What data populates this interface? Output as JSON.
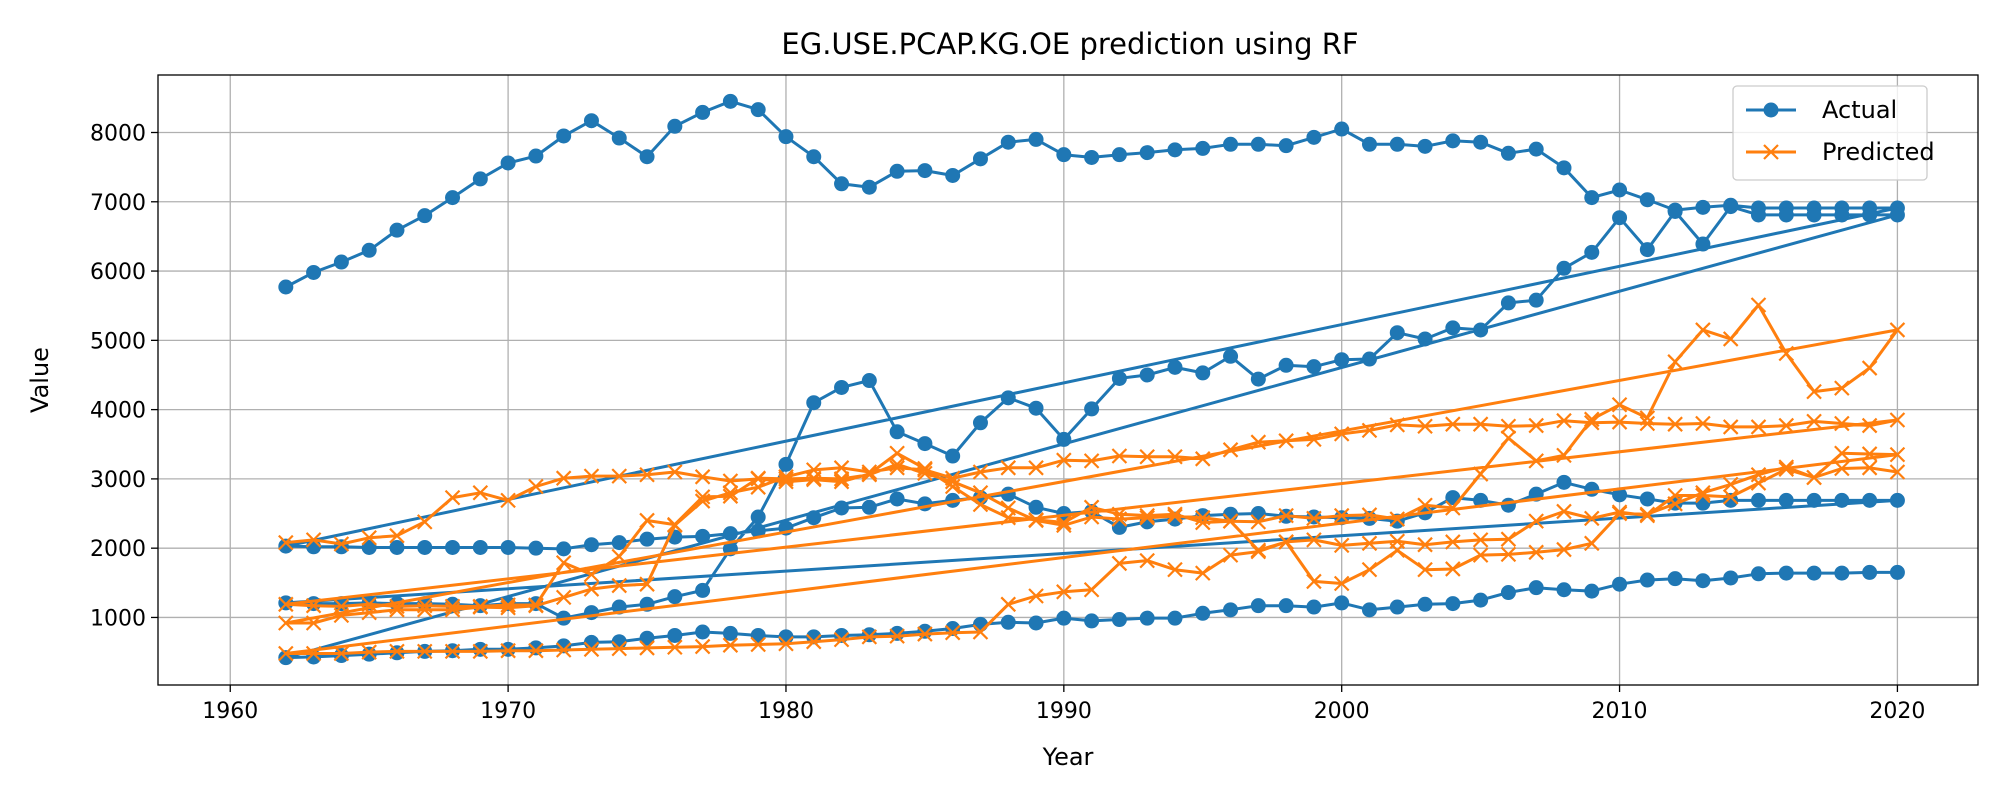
{
  "chart_data": {
    "type": "line",
    "title": "EG.USE.PCAP.KG.OE prediction using RF",
    "xlabel": "Year",
    "ylabel": "Value",
    "xlim": [
      1957.4,
      2022.9
    ],
    "ylim": [
      25,
      8830
    ],
    "xticks": [
      1960,
      1970,
      1980,
      1990,
      2000,
      2010,
      2020
    ],
    "yticks": [
      1000,
      2000,
      3000,
      4000,
      5000,
      6000,
      7000,
      8000
    ],
    "grid": true,
    "legend_position": "top-right",
    "colors": {
      "actual": "#1f77b4",
      "predicted": "#ff7f0e",
      "grid": "#b0b0b0"
    },
    "series": [
      {
        "name": "Actual",
        "marker": "circle",
        "x": [
          1962,
          1963,
          1964,
          1965,
          1966,
          1967,
          1968,
          1969,
          1970,
          1971,
          1972,
          1973,
          1974,
          1975,
          1976,
          1977,
          1978,
          1979,
          1980,
          1981,
          1982,
          1983,
          1984,
          1985,
          1986,
          1987,
          1988,
          1989,
          1990,
          1991,
          1992,
          1993,
          1994,
          1995,
          1996,
          1997,
          1998,
          1999,
          2000,
          2001,
          2002,
          2003,
          2004,
          2005,
          2006,
          2007,
          2008,
          2009,
          2010,
          2011,
          2012,
          2013,
          2014,
          2015,
          2016,
          2017,
          2018,
          2019,
          2020,
          1962,
          1963,
          1964,
          1965,
          1966,
          1967,
          1968,
          1969,
          1970,
          1971,
          1972,
          1973,
          1974,
          1975,
          1976,
          1977,
          1978,
          1979,
          1980,
          1981,
          1982,
          1983,
          1984,
          1985,
          1986,
          1987,
          1988,
          1989,
          1990,
          1991,
          1992,
          1993,
          1994,
          1995,
          1996,
          1997,
          1998,
          1999,
          2000,
          2001,
          2002,
          2003,
          2004,
          2005,
          2006,
          2007,
          2008,
          2009,
          2010,
          2011,
          2012,
          2013,
          2014,
          2015,
          2016,
          2017,
          2018,
          2019,
          2020,
          1962,
          1963,
          1964,
          1965,
          1966,
          1967,
          1968,
          1969,
          1970,
          1971,
          1972,
          1973,
          1974,
          1975,
          1976,
          1977,
          1978,
          1979,
          1980,
          1981,
          1982,
          1983,
          1984,
          1985,
          1986,
          1987,
          1988,
          1989,
          1990,
          1991,
          1992,
          1993,
          1994,
          1995,
          1996,
          1997,
          1998,
          1999,
          2000,
          2001,
          2002,
          2003,
          2004,
          2005,
          2006,
          2007,
          2008,
          2009,
          2010,
          2011,
          2012,
          2013,
          2014,
          2015,
          2016,
          2017,
          2018,
          2019,
          2020,
          1962,
          1963,
          1964,
          1965,
          1966,
          1967,
          1968,
          1969,
          1970,
          1971,
          1972,
          1973,
          1974,
          1975,
          1976,
          1977,
          1978,
          1979,
          1980,
          1981,
          1982,
          1983,
          1984,
          1985,
          1986,
          1987,
          1988,
          1989,
          1990,
          1991,
          1992,
          1993,
          1994,
          1995,
          1996,
          1997,
          1998,
          1999,
          2000,
          2001,
          2002,
          2003,
          2004,
          2005,
          2006,
          2007,
          2008,
          2009,
          2010,
          2011,
          2012,
          2013,
          2014,
          2015,
          2016,
          2017,
          2018,
          2019,
          2020
        ],
        "y": [
          5770,
          5980,
          6130,
          6300,
          6590,
          6800,
          7060,
          7330,
          7560,
          7660,
          7950,
          8170,
          7920,
          7650,
          8090,
          8290,
          8450,
          8330,
          7940,
          7650,
          7260,
          7210,
          7440,
          7450,
          7380,
          7620,
          7860,
          7900,
          7680,
          7640,
          7680,
          7710,
          7750,
          7770,
          7830,
          7830,
          7810,
          7930,
          8050,
          7830,
          7830,
          7800,
          7880,
          7860,
          7700,
          7760,
          7490,
          7060,
          7170,
          7030,
          6880,
          6920,
          6950,
          6910,
          6910,
          6910,
          6910,
          6910,
          6910,
          2030,
          2020,
          2020,
          2010,
          2010,
          2010,
          2010,
          2010,
          2010,
          2000,
          1990,
          2050,
          2080,
          2130,
          2160,
          2170,
          2210,
          2250,
          2290,
          2440,
          2580,
          2590,
          2710,
          2640,
          2690,
          2730,
          2780,
          2590,
          2500,
          2530,
          2300,
          2380,
          2420,
          2470,
          2490,
          2500,
          2460,
          2450,
          2440,
          2430,
          2390,
          2510,
          2730,
          2690,
          2620,
          2780,
          2950,
          2850,
          2770,
          2710,
          2650,
          2650,
          2690,
          2690,
          2690,
          2690,
          2690,
          2690,
          2690,
          1210,
          1200,
          1200,
          1210,
          1200,
          1200,
          1190,
          1170,
          1200,
          1200,
          990,
          1070,
          1150,
          1190,
          1300,
          1390,
          1990,
          2450,
          3210,
          4100,
          4320,
          4420,
          3680,
          3510,
          3330,
          3810,
          4170,
          4020,
          3570,
          4010,
          4450,
          4500,
          4610,
          4530,
          4770,
          4440,
          4640,
          4620,
          4720,
          4730,
          5110,
          5020,
          5180,
          5150,
          5540,
          5580,
          6040,
          6270,
          6770,
          6310,
          6860,
          6390,
          6930,
          6810,
          6810,
          6810,
          6810,
          6810,
          6810,
          420,
          430,
          450,
          470,
          490,
          510,
          520,
          540,
          540,
          560,
          590,
          640,
          650,
          700,
          740,
          790,
          770,
          740,
          720,
          720,
          740,
          750,
          770,
          800,
          840,
          900,
          930,
          920,
          990,
          950,
          970,
          990,
          990,
          1060,
          1110,
          1170,
          1170,
          1150,
          1210,
          1110,
          1150,
          1190,
          1200,
          1250,
          1360,
          1430,
          1400,
          1380,
          1480,
          1540,
          1560,
          1530,
          1570,
          1630,
          1640,
          1640,
          1640,
          1650,
          1650
        ]
      },
      {
        "name": "Predicted",
        "marker": "x",
        "x": [
          1962,
          1963,
          1964,
          1965,
          1966,
          1967,
          1968,
          1969,
          1970,
          1971,
          1972,
          1973,
          1974,
          1975,
          1976,
          1977,
          1978,
          1979,
          1980,
          1981,
          1982,
          1983,
          1984,
          1985,
          1986,
          1987,
          1988,
          1989,
          1990,
          1991,
          1992,
          1993,
          1994,
          1995,
          1996,
          1997,
          1998,
          1999,
          2000,
          2001,
          2002,
          2003,
          2004,
          2005,
          2006,
          2007,
          2008,
          2009,
          2010,
          2011,
          2012,
          2013,
          2014,
          2015,
          2016,
          2017,
          2018,
          2019,
          2020,
          1962,
          1963,
          1964,
          1965,
          1966,
          1967,
          1968,
          1969,
          1970,
          1971,
          1972,
          1973,
          1974,
          1975,
          1976,
          1977,
          1978,
          1979,
          1980,
          1981,
          1982,
          1983,
          1984,
          1985,
          1986,
          1987,
          1988,
          1989,
          1990,
          1991,
          1992,
          1993,
          1994,
          1995,
          1996,
          1997,
          1998,
          1999,
          2000,
          2001,
          2002,
          2003,
          2004,
          2005,
          2006,
          2007,
          2008,
          2009,
          2010,
          2011,
          2012,
          2013,
          2014,
          2015,
          2016,
          2017,
          2018,
          2019,
          2020,
          1962,
          1963,
          1964,
          1965,
          1966,
          1967,
          1968,
          1969,
          1970,
          1971,
          1972,
          1973,
          1974,
          1975,
          1976,
          1977,
          1978,
          1979,
          1980,
          1981,
          1982,
          1983,
          1984,
          1985,
          1986,
          1987,
          1988,
          1989,
          1990,
          1991,
          1992,
          1993,
          1994,
          1995,
          1996,
          1997,
          1998,
          1999,
          2000,
          2001,
          2002,
          2003,
          2004,
          2005,
          2006,
          2007,
          2008,
          2009,
          2010,
          2011,
          2012,
          2013,
          2014,
          2015,
          2016,
          2017,
          2018,
          2019,
          2020,
          1962,
          1963,
          1964,
          1965,
          1966,
          1967,
          1968,
          1969,
          1970,
          1971,
          1972,
          1973,
          1974,
          1975,
          1976,
          1977,
          1978,
          1979,
          1980,
          1981,
          1982,
          1983,
          1984,
          1985,
          1986,
          1987,
          1988,
          1989,
          1990,
          1991,
          1992,
          1993,
          1994,
          1995,
          1996,
          1997,
          1998,
          1999,
          2000,
          2001,
          2002,
          2003,
          2004,
          2005,
          2006,
          2007,
          2008,
          2009,
          2010,
          2011,
          2012,
          2013,
          2014,
          2015,
          2016,
          2017,
          2018,
          2019,
          2020
        ],
        "y": [
          2080,
          2120,
          2060,
          2150,
          2180,
          2380,
          2730,
          2800,
          2690,
          2890,
          3010,
          3040,
          3040,
          3060,
          3100,
          3030,
          2970,
          3000,
          2960,
          2990,
          2960,
          3070,
          3370,
          3150,
          2890,
          2630,
          2440,
          2410,
          2370,
          2590,
          2490,
          2470,
          2490,
          2370,
          2390,
          2380,
          2470,
          2430,
          2470,
          2480,
          2420,
          2620,
          2580,
          3070,
          3590,
          3260,
          3340,
          3860,
          4070,
          3880,
          4690,
          5150,
          5020,
          5510,
          4810,
          4260,
          4310,
          4600,
          5150,
          920,
          920,
          1030,
          1070,
          1110,
          1110,
          1110,
          1150,
          1140,
          1170,
          1290,
          1410,
          1460,
          1480,
          2330,
          2680,
          2800,
          2880,
          3030,
          3130,
          3160,
          3100,
          3160,
          3130,
          3010,
          3100,
          3160,
          3160,
          3270,
          3260,
          3330,
          3320,
          3320,
          3290,
          3420,
          3530,
          3550,
          3570,
          3650,
          3700,
          3780,
          3760,
          3790,
          3790,
          3760,
          3770,
          3840,
          3810,
          3820,
          3800,
          3790,
          3800,
          3750,
          3750,
          3770,
          3830,
          3800,
          3770,
          3850,
          1190,
          1170,
          1160,
          1190,
          1160,
          1170,
          1160,
          1160,
          1180,
          1180,
          1790,
          1620,
          1880,
          2400,
          2340,
          2740,
          2750,
          3010,
          3000,
          3010,
          3000,
          3060,
          3210,
          3080,
          2960,
          2800,
          2580,
          2400,
          2330,
          2450,
          2420,
          2440,
          2460,
          2440,
          2390,
          1970,
          2090,
          1520,
          1490,
          1690,
          1970,
          1690,
          1700,
          1900,
          1910,
          1940,
          1980,
          2070,
          2500,
          2490,
          2640,
          2800,
          2920,
          3060,
          3170,
          3020,
          3370,
          3360,
          3350,
          480,
          480,
          480,
          500,
          510,
          510,
          510,
          510,
          520,
          520,
          530,
          540,
          550,
          560,
          570,
          580,
          600,
          610,
          620,
          650,
          680,
          720,
          730,
          760,
          780,
          790,
          1190,
          1310,
          1370,
          1400,
          1780,
          1820,
          1690,
          1640,
          1900,
          1950,
          2090,
          2120,
          2040,
          2070,
          2100,
          2050,
          2090,
          2120,
          2130,
          2390,
          2530,
          2430,
          2520,
          2470,
          2760,
          2760,
          2740,
          2940,
          3140,
          3020,
          3150,
          3160,
          3100
        ]
      }
    ]
  }
}
